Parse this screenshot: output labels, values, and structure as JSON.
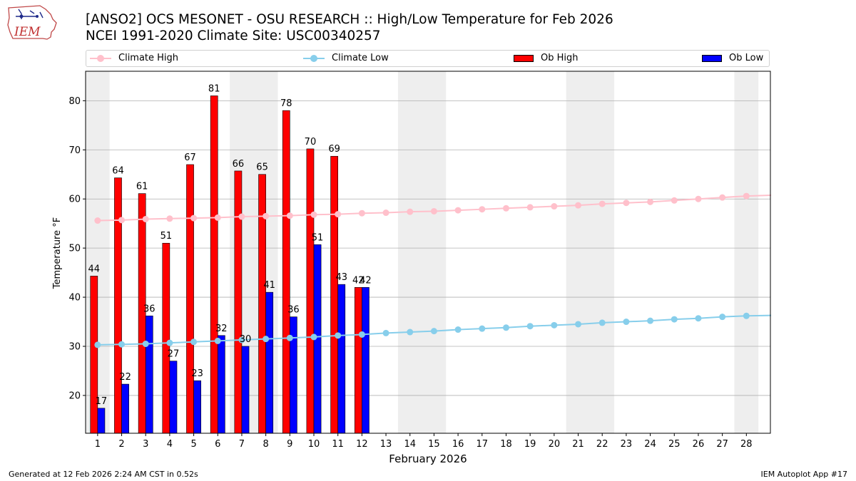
{
  "header": {
    "title_line1": "[ANSO2] OCS MESONET - OSU RESEARCH :: High/Low Temperature for Feb 2026",
    "title_line2": "NCEI 1991-2020 Climate Site: USC00340257",
    "logo_text": "IEM"
  },
  "legend": {
    "climate_high": "Climate High",
    "climate_low": "Climate Low",
    "ob_high": "Ob High",
    "ob_low": "Ob Low"
  },
  "colors": {
    "climate_high": "#ffc0cb",
    "climate_low": "#87ceeb",
    "ob_high": "#ff0000",
    "ob_low": "#0000ff",
    "weekend_shade": "#eeeeee",
    "grid": "#b0b0b0"
  },
  "chart_data": {
    "type": "bar",
    "title": "[ANSO2] OCS MESONET - OSU RESEARCH :: High/Low Temperature for Feb 2026",
    "xlabel": "February 2026",
    "ylabel": "Temperature °F",
    "ylim": [
      12.3,
      86
    ],
    "yticks": [
      20,
      30,
      40,
      50,
      60,
      70,
      80
    ],
    "grid": true,
    "legend_position": "top",
    "days": [
      1,
      2,
      3,
      4,
      5,
      6,
      7,
      8,
      9,
      10,
      11,
      12,
      13,
      14,
      15,
      16,
      17,
      18,
      19,
      20,
      21,
      22,
      23,
      24,
      25,
      26,
      27,
      28
    ],
    "shaded_days": [
      [
        1,
        1
      ],
      [
        7,
        8
      ],
      [
        14,
        15
      ],
      [
        21,
        22
      ],
      [
        28,
        28
      ]
    ],
    "series": [
      {
        "name": "Ob High",
        "kind": "bar",
        "values": [
          44.3,
          64.3,
          61.1,
          51,
          67,
          81,
          65.7,
          65,
          78,
          70.2,
          68.7,
          42
        ]
      },
      {
        "name": "Ob Low",
        "kind": "bar",
        "values": [
          17.4,
          22.3,
          36.2,
          27,
          23,
          32.2,
          30,
          41,
          36,
          50.7,
          42.6,
          42
        ]
      },
      {
        "name": "Climate High",
        "kind": "line",
        "values": [
          55.6,
          55.7,
          55.9,
          56,
          56.1,
          56.2,
          56.4,
          56.5,
          56.6,
          56.8,
          56.9,
          57.1,
          57.2,
          57.4,
          57.5,
          57.7,
          57.9,
          58.1,
          58.3,
          58.5,
          58.7,
          59,
          59.2,
          59.4,
          59.7,
          60,
          60.3,
          60.6
        ]
      },
      {
        "name": "Climate Low",
        "kind": "line",
        "values": [
          30.3,
          30.4,
          30.5,
          30.7,
          30.9,
          31.1,
          31.3,
          31.5,
          31.7,
          31.9,
          32.2,
          32.4,
          32.7,
          32.9,
          33.1,
          33.4,
          33.6,
          33.8,
          34.1,
          34.3,
          34.5,
          34.8,
          35,
          35.2,
          35.5,
          35.7,
          36,
          36.2
        ]
      }
    ],
    "high_labels": [
      "44",
      "64",
      "61",
      "51",
      "67",
      "81",
      "66",
      "65",
      "78",
      "70",
      "69",
      "42"
    ],
    "low_labels": [
      "17",
      "22",
      "36",
      "27",
      "23",
      "32",
      "30",
      "41",
      "36",
      "51",
      "43",
      "42"
    ]
  },
  "footer": {
    "generated": "Generated at 12 Feb 2026 2:24 AM CST in 0.52s",
    "app": "IEM Autoplot App #17"
  }
}
